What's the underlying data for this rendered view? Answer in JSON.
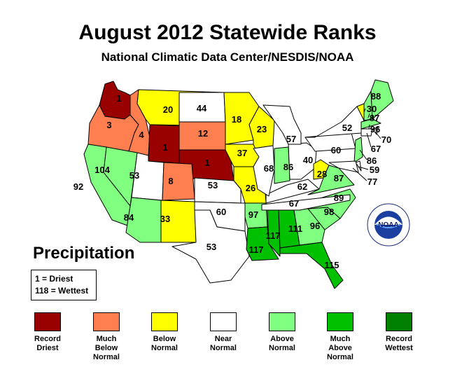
{
  "title": "August 2012 Statewide Ranks",
  "subtitle": "National Climatic Data Center/NESDIS/NOAA",
  "panel_title": "Precipitation",
  "scale": {
    "driest": "1 = Driest",
    "wettest": "118 = Wettest"
  },
  "logo_text": "NOAA",
  "legend": [
    {
      "line1": "Record",
      "line2": "Driest",
      "line3": "",
      "color": "#990000"
    },
    {
      "line1": "Much",
      "line2": "Below",
      "line3": "Normal",
      "color": "#ff7f50"
    },
    {
      "line1": "Below",
      "line2": "Normal",
      "line3": "",
      "color": "#ffff00"
    },
    {
      "line1": "Near",
      "line2": "Normal",
      "line3": "",
      "color": "#ffffff"
    },
    {
      "line1": "Above",
      "line2": "Normal",
      "line3": "",
      "color": "#80ff80"
    },
    {
      "line1": "Much",
      "line2": "Above",
      "line3": "Normal",
      "color": "#00c000"
    },
    {
      "line1": "Record",
      "line2": "Wettest",
      "line3": "",
      "color": "#008000"
    }
  ],
  "states": [
    {
      "state": "WA",
      "rank": "1",
      "category": 0
    },
    {
      "state": "OR",
      "rank": "3",
      "category": 1
    },
    {
      "state": "ID",
      "rank": "4",
      "category": 1
    },
    {
      "state": "MT",
      "rank": "20",
      "category": 2
    },
    {
      "state": "WY",
      "rank": "1",
      "category": 0
    },
    {
      "state": "ND",
      "rank": "44",
      "category": 3
    },
    {
      "state": "SD",
      "rank": "12",
      "category": 1
    },
    {
      "state": "NE",
      "rank": "1",
      "category": 0
    },
    {
      "state": "MN",
      "rank": "18",
      "category": 2
    },
    {
      "state": "WI",
      "rank": "23",
      "category": 2
    },
    {
      "state": "IA",
      "rank": "37",
      "category": 2
    },
    {
      "state": "MO",
      "rank": "26",
      "category": 2
    },
    {
      "state": "CA",
      "rank": "92",
      "category": 4
    },
    {
      "state": "NV",
      "rank": "104",
      "category": 4
    },
    {
      "state": "UT",
      "rank": "53",
      "category": 3
    },
    {
      "state": "CO",
      "rank": "8",
      "category": 1
    },
    {
      "state": "KS",
      "rank": "53",
      "category": 3
    },
    {
      "state": "AZ",
      "rank": "84",
      "category": 4
    },
    {
      "state": "NM",
      "rank": "33",
      "category": 2
    },
    {
      "state": "OK",
      "rank": "60",
      "category": 3
    },
    {
      "state": "TX",
      "rank": "53",
      "category": 3
    },
    {
      "state": "AR",
      "rank": "97",
      "category": 4
    },
    {
      "state": "LA",
      "rank": "117",
      "category": 5
    },
    {
      "state": "MS",
      "rank": "117",
      "category": 5
    },
    {
      "state": "AL",
      "rank": "111",
      "category": 5
    },
    {
      "state": "GA",
      "rank": "96",
      "category": 4
    },
    {
      "state": "FL",
      "rank": "115",
      "category": 5
    },
    {
      "state": "SC",
      "rank": "98",
      "category": 4
    },
    {
      "state": "NC",
      "rank": "89",
      "category": 4
    },
    {
      "state": "TN",
      "rank": "67",
      "category": 3
    },
    {
      "state": "KY",
      "rank": "62",
      "category": 3
    },
    {
      "state": "IL",
      "rank": "68",
      "category": 3
    },
    {
      "state": "IN",
      "rank": "86",
      "category": 4
    },
    {
      "state": "OH",
      "rank": "40",
      "category": 3
    },
    {
      "state": "MI",
      "rank": "57",
      "category": 3
    },
    {
      "state": "WV",
      "rank": "28",
      "category": 2
    },
    {
      "state": "VA",
      "rank": "87",
      "category": 4
    },
    {
      "state": "PA",
      "rank": "60",
      "category": 3
    },
    {
      "state": "NY",
      "rank": "52",
      "category": 3
    },
    {
      "state": "VT",
      "rank": "30",
      "category": 2
    },
    {
      "state": "NH",
      "rank": "87",
      "category": 4
    },
    {
      "state": "ME",
      "rank": "88",
      "category": 4
    },
    {
      "state": "MA",
      "rank": "96",
      "category": 4
    },
    {
      "state": "RI",
      "rank": "70",
      "category": 3
    },
    {
      "state": "CT",
      "rank": "67",
      "category": 3
    },
    {
      "state": "NJ",
      "rank": "86",
      "category": 4
    },
    {
      "state": "DE",
      "rank": "59",
      "category": 3
    },
    {
      "state": "MD",
      "rank": "77",
      "category": 3
    }
  ]
}
